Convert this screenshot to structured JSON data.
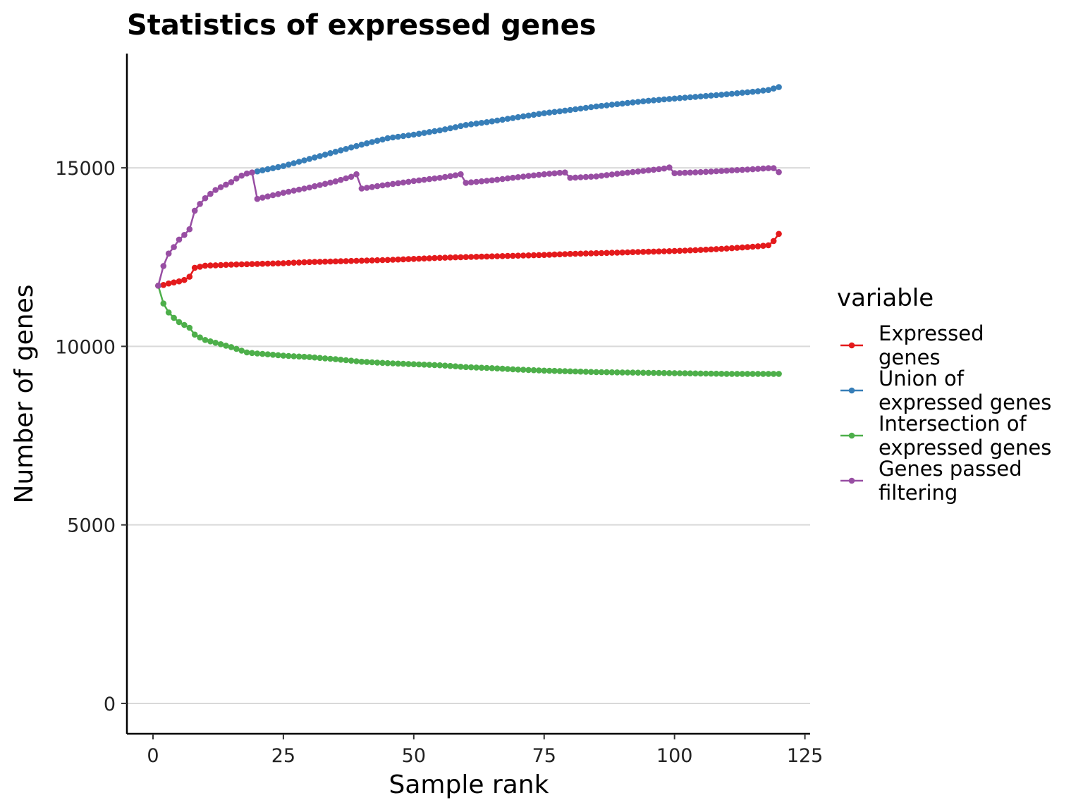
{
  "chart_data": {
    "type": "line",
    "title": "Statistics of expressed genes",
    "xlabel": "Sample rank",
    "ylabel": "Number of genes",
    "xlim": [
      -5,
      126
    ],
    "ylim": [
      -850,
      18200
    ],
    "xticks": [
      0,
      25,
      50,
      75,
      100,
      125
    ],
    "yticks": [
      0,
      5000,
      10000,
      15000
    ],
    "grid": "horizontal-major",
    "legend": {
      "title": "variable",
      "position": "right"
    },
    "series": [
      {
        "name": "Expressed genes",
        "label_lines": [
          "Expressed",
          "genes"
        ],
        "color": "#E41A1C",
        "points": [
          [
            1,
            11700
          ],
          [
            2,
            11720
          ],
          [
            3,
            11760
          ],
          [
            4,
            11790
          ],
          [
            5,
            11820
          ],
          [
            6,
            11860
          ],
          [
            7,
            11950
          ],
          [
            8,
            12200
          ],
          [
            9,
            12230
          ],
          [
            10,
            12260
          ],
          [
            12,
            12270
          ],
          [
            15,
            12290
          ],
          [
            20,
            12310
          ],
          [
            25,
            12330
          ],
          [
            30,
            12360
          ],
          [
            35,
            12380
          ],
          [
            40,
            12400
          ],
          [
            45,
            12420
          ],
          [
            50,
            12450
          ],
          [
            55,
            12480
          ],
          [
            60,
            12500
          ],
          [
            65,
            12520
          ],
          [
            70,
            12540
          ],
          [
            75,
            12560
          ],
          [
            80,
            12590
          ],
          [
            85,
            12610
          ],
          [
            90,
            12630
          ],
          [
            95,
            12650
          ],
          [
            100,
            12670
          ],
          [
            105,
            12700
          ],
          [
            110,
            12740
          ],
          [
            115,
            12790
          ],
          [
            118,
            12830
          ],
          [
            119,
            12950
          ],
          [
            120,
            13150
          ]
        ]
      },
      {
        "name": "Union of expressed genes",
        "label_lines": [
          "Union of",
          "expressed genes"
        ],
        "color": "#377EB8",
        "points": [
          [
            20,
            14900
          ],
          [
            25,
            15050
          ],
          [
            30,
            15250
          ],
          [
            35,
            15450
          ],
          [
            40,
            15650
          ],
          [
            45,
            15830
          ],
          [
            50,
            15930
          ],
          [
            55,
            16050
          ],
          [
            60,
            16200
          ],
          [
            65,
            16300
          ],
          [
            70,
            16420
          ],
          [
            75,
            16530
          ],
          [
            80,
            16620
          ],
          [
            85,
            16720
          ],
          [
            90,
            16800
          ],
          [
            95,
            16880
          ],
          [
            100,
            16940
          ],
          [
            105,
            17000
          ],
          [
            110,
            17060
          ],
          [
            115,
            17130
          ],
          [
            118,
            17180
          ],
          [
            120,
            17260
          ]
        ]
      },
      {
        "name": "Intersection of expressed genes",
        "label_lines": [
          "Intersection of",
          "expressed genes"
        ],
        "color": "#4DAF4A",
        "points": [
          [
            1,
            11700
          ],
          [
            2,
            11200
          ],
          [
            3,
            10950
          ],
          [
            4,
            10800
          ],
          [
            5,
            10680
          ],
          [
            6,
            10600
          ],
          [
            7,
            10520
          ],
          [
            8,
            10330
          ],
          [
            9,
            10250
          ],
          [
            10,
            10180
          ],
          [
            12,
            10100
          ],
          [
            15,
            9980
          ],
          [
            18,
            9830
          ],
          [
            20,
            9800
          ],
          [
            25,
            9740
          ],
          [
            30,
            9700
          ],
          [
            35,
            9640
          ],
          [
            40,
            9570
          ],
          [
            45,
            9530
          ],
          [
            50,
            9500
          ],
          [
            55,
            9470
          ],
          [
            60,
            9420
          ],
          [
            65,
            9390
          ],
          [
            70,
            9350
          ],
          [
            75,
            9320
          ],
          [
            80,
            9300
          ],
          [
            85,
            9280
          ],
          [
            90,
            9270
          ],
          [
            95,
            9260
          ],
          [
            100,
            9250
          ],
          [
            105,
            9240
          ],
          [
            110,
            9230
          ],
          [
            115,
            9230
          ],
          [
            120,
            9230
          ]
        ]
      },
      {
        "name": "Genes passed filtering",
        "label_lines": [
          "Genes passed",
          "filtering"
        ],
        "color": "#984EA3",
        "points": [
          [
            1,
            11700
          ],
          [
            2,
            12250
          ],
          [
            3,
            12600
          ],
          [
            4,
            12780
          ],
          [
            5,
            12990
          ],
          [
            6,
            13120
          ],
          [
            7,
            13280
          ],
          [
            8,
            13800
          ],
          [
            9,
            13990
          ],
          [
            10,
            14150
          ],
          [
            11,
            14270
          ],
          [
            12,
            14380
          ],
          [
            13,
            14460
          ],
          [
            14,
            14530
          ],
          [
            15,
            14600
          ],
          [
            16,
            14700
          ],
          [
            17,
            14780
          ],
          [
            18,
            14840
          ],
          [
            19,
            14870
          ],
          [
            20,
            14130
          ],
          [
            25,
            14300
          ],
          [
            30,
            14450
          ],
          [
            35,
            14620
          ],
          [
            38,
            14750
          ],
          [
            39,
            14820
          ],
          [
            40,
            14420
          ],
          [
            45,
            14530
          ],
          [
            50,
            14630
          ],
          [
            55,
            14720
          ],
          [
            58,
            14790
          ],
          [
            59,
            14820
          ],
          [
            60,
            14580
          ],
          [
            65,
            14650
          ],
          [
            70,
            14740
          ],
          [
            75,
            14820
          ],
          [
            78,
            14860
          ],
          [
            79,
            14870
          ],
          [
            80,
            14720
          ],
          [
            85,
            14760
          ],
          [
            90,
            14850
          ],
          [
            95,
            14930
          ],
          [
            98,
            14980
          ],
          [
            99,
            15010
          ],
          [
            100,
            14850
          ],
          [
            105,
            14880
          ],
          [
            110,
            14920
          ],
          [
            115,
            14960
          ],
          [
            118,
            14990
          ],
          [
            119,
            14990
          ],
          [
            120,
            14880
          ]
        ]
      }
    ]
  }
}
